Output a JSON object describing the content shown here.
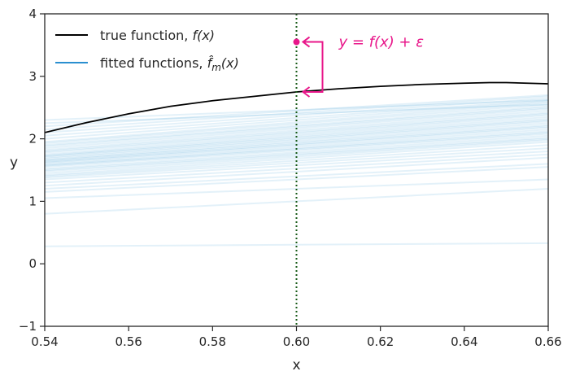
{
  "colors": {
    "true_function": "#000000",
    "fitted": "#2a8fd0",
    "annotation": "#e8178a",
    "vline": "#1a5c1a",
    "axes": "#262626"
  },
  "chart_data": {
    "type": "line",
    "xlabel": "x",
    "ylabel": "y",
    "xlim": [
      0.54,
      0.66
    ],
    "ylim": [
      -1,
      4
    ],
    "x_ticks": [
      "0.54",
      "0.56",
      "0.58",
      "0.60",
      "0.62",
      "0.64",
      "0.66"
    ],
    "y_ticks": [
      "−1",
      "0",
      "1",
      "2",
      "3",
      "4"
    ],
    "grid": false,
    "legend_position": "top-left",
    "legend": [
      {
        "label": "true function, f(x)",
        "prefix": "true function, ",
        "math": "f(x)"
      },
      {
        "label": "fitted functions, f̂m(x)",
        "prefix": "fitted functions, ",
        "math_base": "f",
        "math_sub": "m",
        "math_tail": "(x)"
      }
    ],
    "true_function": {
      "x": [
        0.54,
        0.55,
        0.56,
        0.57,
        0.58,
        0.59,
        0.6,
        0.61,
        0.62,
        0.63,
        0.64,
        0.646,
        0.65,
        0.66
      ],
      "y": [
        2.1,
        2.26,
        2.4,
        2.52,
        2.61,
        2.68,
        2.75,
        2.8,
        2.84,
        2.87,
        2.89,
        2.9,
        2.9,
        2.88
      ]
    },
    "fitted_functions_endpoints": {
      "x": [
        0.54,
        0.66
      ],
      "y0": [
        0.8,
        0.28,
        1.05,
        1.15,
        1.2,
        1.25,
        1.3,
        1.35,
        1.38,
        1.4,
        1.42,
        1.45,
        1.48,
        1.5,
        1.52,
        1.55,
        1.57,
        1.58,
        1.6,
        1.62,
        1.63,
        1.65,
        1.66,
        1.68,
        1.7,
        1.72,
        1.73,
        1.75,
        1.78,
        1.8,
        1.82,
        1.85,
        1.88,
        1.9,
        1.93,
        1.95,
        2.0,
        2.05,
        2.1,
        2.15,
        2.2,
        2.25,
        2.3
      ],
      "y1": [
        1.2,
        0.33,
        1.35,
        1.55,
        1.6,
        1.7,
        1.75,
        1.8,
        1.85,
        1.9,
        1.95,
        1.98,
        2.0,
        2.02,
        2.05,
        2.08,
        2.1,
        2.12,
        2.15,
        2.18,
        2.2,
        2.22,
        2.25,
        2.28,
        2.3,
        2.32,
        2.35,
        2.38,
        2.4,
        2.42,
        2.45,
        2.48,
        2.5,
        2.52,
        2.55,
        2.58,
        2.6,
        2.62,
        2.65,
        2.68,
        2.7,
        2.55,
        2.62
      ]
    },
    "vline_x": 0.6,
    "annotation": {
      "point_x": 0.6,
      "point_y": 3.55,
      "fx_y": 2.75,
      "text": "y = f(x) + ε"
    }
  }
}
